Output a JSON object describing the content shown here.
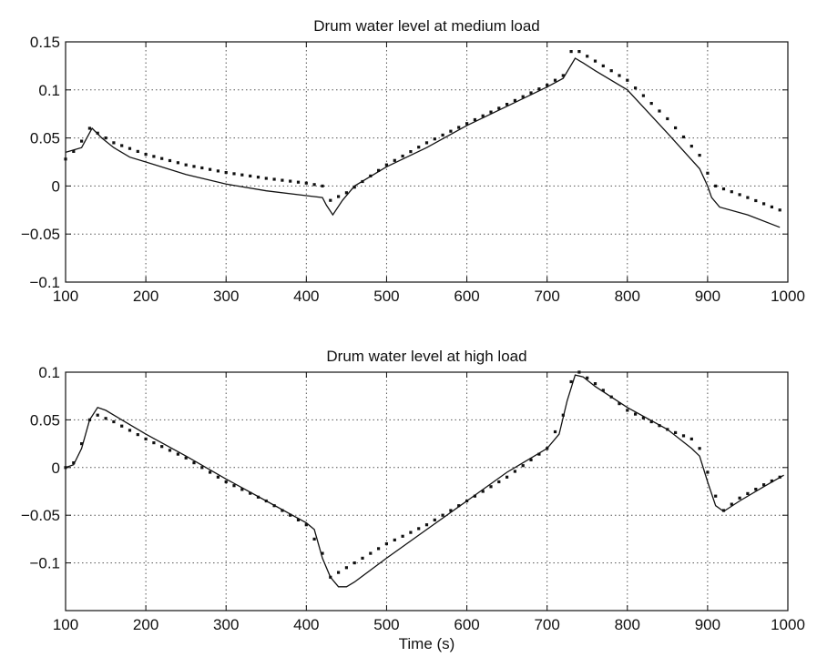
{
  "chart_data": [
    {
      "type": "line",
      "title": "Drum water level at medium load",
      "xlabel": "",
      "ylabel": "",
      "xlim": [
        100,
        1000
      ],
      "ylim": [
        -0.1,
        0.15
      ],
      "xticks": [
        "100",
        "200",
        "300",
        "400",
        "500",
        "600",
        "700",
        "800",
        "900",
        "1000"
      ],
      "yticks": [
        "-0.1",
        "-0.05",
        "0",
        "0.05",
        "0.1",
        "0.15"
      ],
      "grid": true,
      "series": [
        {
          "style": "solid",
          "x": [
            100,
            120,
            133,
            145,
            160,
            180,
            200,
            250,
            300,
            350,
            400,
            420,
            425,
            433,
            445,
            460,
            500,
            550,
            600,
            650,
            700,
            720,
            735,
            745,
            760,
            800,
            850,
            890,
            900,
            905,
            915,
            950,
            990
          ],
          "y": [
            0.035,
            0.04,
            0.06,
            0.05,
            0.04,
            0.03,
            0.025,
            0.012,
            0.002,
            -0.005,
            -0.01,
            -0.012,
            -0.02,
            -0.03,
            -0.015,
            0.0,
            0.02,
            0.04,
            0.063,
            0.083,
            0.103,
            0.112,
            0.133,
            0.128,
            0.12,
            0.1,
            0.055,
            0.018,
            0.0,
            -0.012,
            -0.022,
            -0.03,
            -0.043
          ]
        },
        {
          "style": "dotted",
          "x": [
            100,
            115,
            130,
            140,
            160,
            200,
            250,
            300,
            350,
            400,
            420,
            430,
            450,
            500,
            550,
            600,
            650,
            700,
            720,
            730,
            740,
            760,
            800,
            850,
            890,
            895,
            910,
            950,
            990
          ],
          "y": [
            0.028,
            0.04,
            0.06,
            0.055,
            0.045,
            0.033,
            0.022,
            0.014,
            0.008,
            0.003,
            0.0,
            -0.015,
            -0.007,
            0.022,
            0.045,
            0.065,
            0.085,
            0.105,
            0.115,
            0.14,
            0.14,
            0.13,
            0.11,
            0.07,
            0.032,
            0.02,
            0.0,
            -0.012,
            -0.025
          ]
        }
      ]
    },
    {
      "type": "line",
      "title": "Drum water level at high load",
      "xlabel": "Time (s)",
      "ylabel": "",
      "xlim": [
        100,
        1000
      ],
      "ylim": [
        -0.15,
        0.1
      ],
      "xticks": [
        "100",
        "200",
        "300",
        "400",
        "500",
        "600",
        "700",
        "800",
        "900",
        "1000"
      ],
      "yticks": [
        "-0.1",
        "-0.05",
        "0",
        "0.05",
        "0.1"
      ],
      "grid": true,
      "series": [
        {
          "style": "solid",
          "x": [
            100,
            110,
            120,
            130,
            140,
            150,
            170,
            200,
            250,
            300,
            350,
            400,
            410,
            420,
            430,
            440,
            450,
            460,
            500,
            550,
            600,
            650,
            700,
            715,
            725,
            735,
            745,
            760,
            800,
            850,
            880,
            890,
            900,
            910,
            920,
            940,
            970,
            995
          ],
          "y": [
            0.0,
            0.003,
            0.02,
            0.05,
            0.063,
            0.06,
            0.05,
            0.035,
            0.012,
            -0.012,
            -0.035,
            -0.058,
            -0.065,
            -0.095,
            -0.115,
            -0.125,
            -0.125,
            -0.12,
            -0.095,
            -0.065,
            -0.035,
            -0.005,
            0.02,
            0.035,
            0.07,
            0.097,
            0.095,
            0.085,
            0.063,
            0.04,
            0.02,
            0.012,
            -0.015,
            -0.04,
            -0.046,
            -0.035,
            -0.02,
            -0.008
          ]
        },
        {
          "style": "dotted",
          "x": [
            100,
            110,
            120,
            130,
            140,
            160,
            200,
            250,
            300,
            350,
            400,
            420,
            430,
            440,
            460,
            500,
            550,
            600,
            650,
            700,
            720,
            730,
            740,
            760,
            800,
            850,
            880,
            890,
            900,
            910,
            920,
            940,
            970,
            995
          ],
          "y": [
            0.0,
            0.005,
            0.025,
            0.05,
            0.055,
            0.048,
            0.03,
            0.01,
            -0.015,
            -0.035,
            -0.06,
            -0.09,
            -0.115,
            -0.11,
            -0.1,
            -0.08,
            -0.06,
            -0.035,
            -0.01,
            0.02,
            0.055,
            0.09,
            0.1,
            0.088,
            0.06,
            0.04,
            0.03,
            0.02,
            -0.005,
            -0.03,
            -0.045,
            -0.032,
            -0.018,
            -0.008
          ]
        }
      ]
    }
  ]
}
